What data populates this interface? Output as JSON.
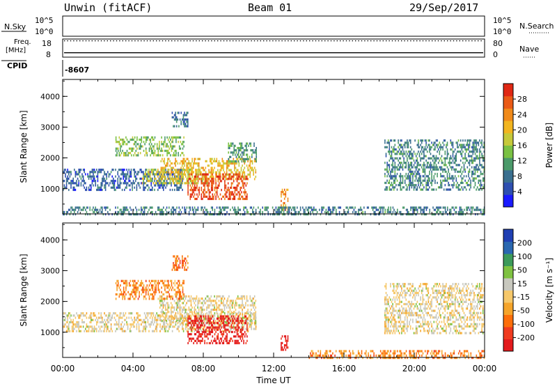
{
  "header": {
    "station": "Unwin (fitACF)",
    "beam": "Beam 01",
    "date": "29/Sep/2017"
  },
  "top_panels": {
    "nsky_label": "N.Sky",
    "nsky_ticks": [
      "10^5",
      "10^0"
    ],
    "nsearch_label": "N.Search",
    "nsearch_ticks": [
      "10^5",
      "10^0"
    ],
    "freq_label_line1": "Freq.",
    "freq_label_line2": "[MHz]",
    "freq_ticks": [
      "18",
      "8"
    ],
    "freq_value_mhz": 17,
    "nave_label": "Nave",
    "nave_ticks": [
      "80",
      "0"
    ],
    "nave_value": 7,
    "cpid_label": "CPID",
    "cpid_value": "-8607"
  },
  "chart_data": [
    {
      "type": "heatmap",
      "ylabel": "Slant Range [km]",
      "xlabel": "Time UT",
      "x_ticks": [
        "00:00",
        "04:00",
        "08:00",
        "12:00",
        "16:00",
        "20:00",
        "00:00"
      ],
      "xlim_hours": [
        0,
        24
      ],
      "y_ticks": [
        "1000",
        "2000",
        "3000",
        "4000"
      ],
      "ylim_km": [
        180,
        4550
      ],
      "colorbar": {
        "label": "Power [dB]",
        "ticks": [
          "4",
          "8",
          "12",
          "16",
          "20",
          "24",
          "28"
        ],
        "range": [
          0,
          30
        ],
        "colors": [
          "#1a1aff",
          "#2e4fb0",
          "#3a6f8f",
          "#4b9a6a",
          "#7ac143",
          "#c6c93a",
          "#f2b51f",
          "#f08a1a",
          "#ea5a16",
          "#e02814"
        ]
      },
      "echo_regions": [
        {
          "t0": 0,
          "t1": 6.8,
          "r0": 950,
          "r1": 1650,
          "level": 0.2
        },
        {
          "t0": 4.5,
          "t1": 8.2,
          "r0": 1150,
          "r1": 1650,
          "level": 0.55
        },
        {
          "t0": 5.5,
          "t1": 11,
          "r0": 1300,
          "r1": 2000,
          "level": 0.62
        },
        {
          "t0": 7.1,
          "t1": 10.5,
          "r0": 650,
          "r1": 1500,
          "level": 0.88
        },
        {
          "t0": 3.0,
          "t1": 6.9,
          "r0": 2050,
          "r1": 2700,
          "level": 0.45
        },
        {
          "t0": 6.2,
          "t1": 7.1,
          "r0": 3000,
          "r1": 3500,
          "level": 0.25
        },
        {
          "t0": 9.4,
          "t1": 11.0,
          "r0": 1900,
          "r1": 2500,
          "level": 0.35
        },
        {
          "t0": 12.4,
          "t1": 12.8,
          "r0": 300,
          "r1": 1000,
          "level": 0.7
        },
        {
          "t0": 18.3,
          "t1": 24,
          "r0": 1000,
          "r1": 2600,
          "level": 0.3
        },
        {
          "t0": 0,
          "t1": 24,
          "r0": 200,
          "r1": 420,
          "level": 0.28
        }
      ]
    },
    {
      "type": "heatmap",
      "ylabel": "Slant Range [km]",
      "xlabel": "Time UT",
      "x_ticks": [
        "00:00",
        "04:00",
        "08:00",
        "12:00",
        "16:00",
        "20:00",
        "00:00"
      ],
      "xlim_hours": [
        0,
        24
      ],
      "y_ticks": [
        "1000",
        "2000",
        "3000",
        "4000"
      ],
      "ylim_km": [
        180,
        4550
      ],
      "colorbar": {
        "label": "Velocity [m s⁻¹]",
        "ticks": [
          "200",
          "100",
          "50",
          "15",
          "-15",
          "-50",
          "-100",
          "-200"
        ],
        "range": [
          -250,
          250
        ],
        "colors": [
          "#e31a1c",
          "#f03b20",
          "#fd6e0a",
          "#f5a42a",
          "#f6c86a",
          "#c8c8be",
          "#7fc241",
          "#3c9a5a",
          "#2a67b0",
          "#1f3fb3"
        ]
      },
      "echo_regions": [
        {
          "t0": 0,
          "t1": 11,
          "r0": 1000,
          "r1": 1650,
          "level": 0.5
        },
        {
          "t0": 5.5,
          "t1": 11,
          "r0": 1300,
          "r1": 2200,
          "level": 0.5
        },
        {
          "t0": 3.0,
          "t1": 6.9,
          "r0": 2050,
          "r1": 2700,
          "level": 0.3
        },
        {
          "t0": 6.2,
          "t1": 7.1,
          "r0": 3000,
          "r1": 3500,
          "level": 0.25
        },
        {
          "t0": 7.1,
          "t1": 10.5,
          "r0": 650,
          "r1": 1550,
          "level": 0.05
        },
        {
          "t0": 12.4,
          "t1": 12.8,
          "r0": 400,
          "r1": 900,
          "level": 0.02
        },
        {
          "t0": 18.3,
          "t1": 24,
          "r0": 1000,
          "r1": 2600,
          "level": 0.5
        },
        {
          "t0": 14,
          "t1": 24,
          "r0": 200,
          "r1": 420,
          "level": 0.3
        }
      ]
    }
  ]
}
